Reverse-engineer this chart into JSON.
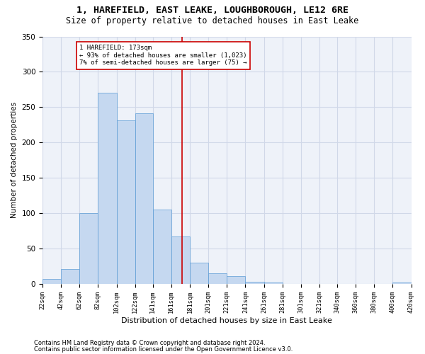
{
  "title": "1, HAREFIELD, EAST LEAKE, LOUGHBOROUGH, LE12 6RE",
  "subtitle": "Size of property relative to detached houses in East Leake",
  "xlabel": "Distribution of detached houses by size in East Leake",
  "ylabel": "Number of detached properties",
  "bin_edges": [
    22,
    42,
    62,
    82,
    102,
    122,
    141,
    161,
    181,
    201,
    221,
    241,
    261,
    281,
    301,
    321,
    340,
    360,
    380,
    400,
    420
  ],
  "bar_heights": [
    7,
    21,
    100,
    270,
    231,
    241,
    105,
    67,
    30,
    15,
    11,
    3,
    2,
    0,
    0,
    0,
    0,
    0,
    0,
    2
  ],
  "annotation_text": "1 HAREFIELD: 173sqm\n← 93% of detached houses are smaller (1,023)\n7% of semi-detached houses are larger (75) →",
  "vline_x": 173,
  "bar_color": "#c5d8f0",
  "bar_edge_color": "#5b9bd5",
  "vline_color": "#cc0000",
  "annotation_box_color": "#cc0000",
  "grid_color": "#d0d8e8",
  "background_color": "#eef2f9",
  "footer1": "Contains HM Land Registry data © Crown copyright and database right 2024.",
  "footer2": "Contains public sector information licensed under the Open Government Licence v3.0.",
  "ylim": [
    0,
    350
  ],
  "yticks": [
    0,
    50,
    100,
    150,
    200,
    250,
    300,
    350
  ]
}
